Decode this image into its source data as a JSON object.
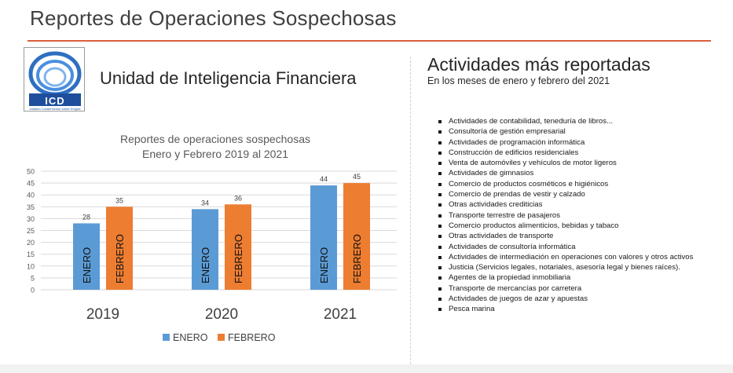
{
  "slide": {
    "title": "Reportes de Operaciones Sospechosas"
  },
  "logo": {
    "text": "ICD",
    "subtext": "Instituto Costarricense sobre Drogas"
  },
  "unit_title": "Unidad de Inteligencia Financiera",
  "activities": {
    "title": "Actividades más reportadas",
    "subtitle": "En los meses de enero y febrero del 2021",
    "items": [
      "Actividades de contabilidad, teneduría de libros...",
      "Consultoría de gestión empresarial",
      "Actividades de programación informática",
      "Construcción de edificios residenciales",
      "Venta de automóviles y vehículos de motor ligeros",
      "Actividades de gimnasios",
      "Comercio de productos cosméticos e higiénicos",
      "Comercio de prendas de vestir y calzado",
      "Otras actividades crediticias",
      "Transporte terrestre de pasajeros",
      "Comercio productos alimenticios, bebidas y tabaco",
      "Otras actividades de transporte",
      "Actividades de consultoría informática",
      "Actividades de intermediación en operaciones con valores y otros activos",
      "Justicia (Servicios legales, notariales, asesoría legal y bienes raíces).",
      "Agentes de la propiedad inmobiliaria",
      "Transporte de mercancías por carretera",
      "Actividades de juegos de azar y apuestas",
      "Pesca marina"
    ]
  },
  "chart_data": {
    "type": "bar",
    "title": "Reportes de operaciones sospechosas",
    "subtitle": "Enero y Febrero 2019 al 2021",
    "categories": [
      "2019",
      "2020",
      "2021"
    ],
    "series": [
      {
        "name": "ENERO",
        "values": [
          28,
          34,
          44
        ],
        "color": "#5b9bd5"
      },
      {
        "name": "FEBRERO",
        "values": [
          35,
          36,
          45
        ],
        "color": "#ed7d31"
      }
    ],
    "ylim": [
      0,
      50
    ],
    "yticks": [
      0,
      5,
      10,
      15,
      20,
      25,
      30,
      35,
      40,
      45,
      50
    ],
    "grid": true,
    "legend": "bottom",
    "bar_labels": true,
    "inside_labels": true
  }
}
